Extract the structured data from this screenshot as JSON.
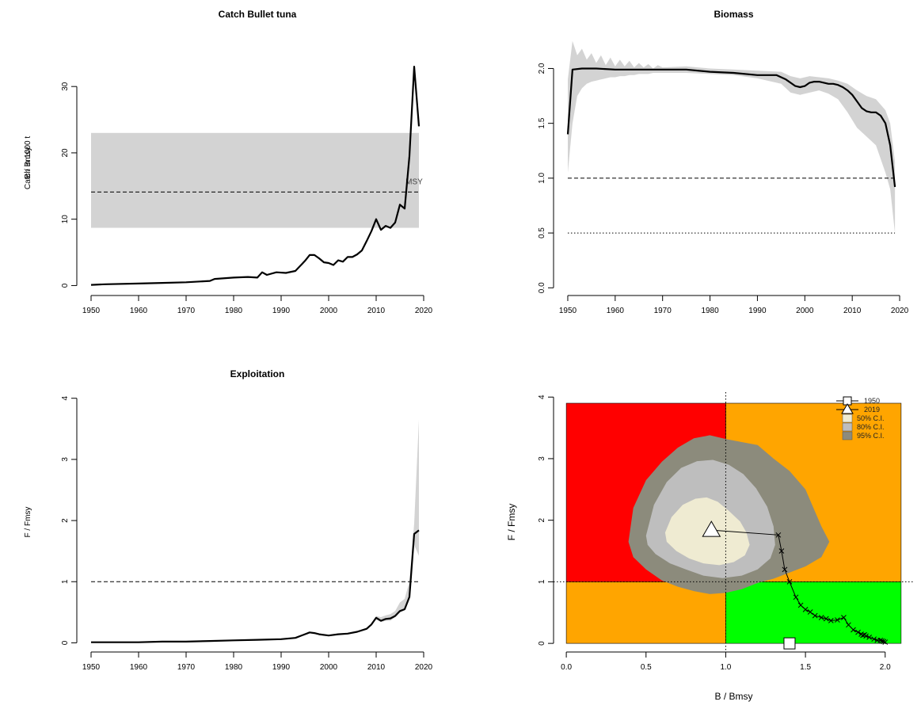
{
  "charts": [
    {
      "id": "catch",
      "type": "line",
      "title": "Catch Bullet tuna",
      "xlabel": "",
      "ylabel": "Catch in 1000 t",
      "xlim": [
        1947,
        2023
      ],
      "ylim": [
        -1.5,
        38.5
      ],
      "xticks": [
        1950,
        1960,
        1970,
        1980,
        1990,
        2000,
        2010,
        2020
      ],
      "yticks": [
        0,
        10,
        20,
        30
      ],
      "band": {
        "x": [
          1950,
          2019
        ],
        "ylow": 8.7,
        "yhigh": 23
      },
      "hline": {
        "y": 14.1,
        "style": "dashed"
      },
      "annotation": {
        "text": "MSY",
        "x": 2018,
        "y": 15.3
      },
      "line": {
        "x": [
          1950,
          1953,
          1960,
          1965,
          1970,
          1975,
          1976,
          1980,
          1983,
          1985,
          1986,
          1987,
          1989,
          1991,
          1993,
          1995,
          1996,
          1997,
          1998,
          1999,
          2000,
          2001,
          2002,
          2003,
          2004,
          2005,
          2006,
          2007,
          2008,
          2009,
          2010,
          2011,
          2012,
          2013,
          2014,
          2015,
          2016,
          2017,
          2018,
          2019
        ],
        "y": [
          0.1,
          0.2,
          0.3,
          0.4,
          0.5,
          0.7,
          1.0,
          1.2,
          1.3,
          1.2,
          2.0,
          1.6,
          2.0,
          1.9,
          2.2,
          3.7,
          4.6,
          4.6,
          4.1,
          3.5,
          3.4,
          3.1,
          3.8,
          3.6,
          4.3,
          4.3,
          4.7,
          5.3,
          6.7,
          8.2,
          10.0,
          8.4,
          9.0,
          8.7,
          9.5,
          12.2,
          11.6,
          19.5,
          33.0,
          24.0
        ]
      }
    },
    {
      "id": "biomass",
      "type": "line",
      "title": "Biomass",
      "xlabel": "",
      "ylabel": "B / Bmsy",
      "xlim": [
        1947,
        2023
      ],
      "ylim": [
        -0.07,
        2.35
      ],
      "xticks": [
        1950,
        1960,
        1970,
        1980,
        1990,
        2000,
        2010,
        2020
      ],
      "yticks": [
        "0.0",
        "0.5",
        "1.0",
        "1.5",
        "2.0"
      ],
      "hlines": [
        {
          "y": 1.0,
          "style": "dashed"
        },
        {
          "y": 0.5,
          "style": "dotted"
        }
      ],
      "band": {
        "x": [
          1950,
          1951,
          1952,
          1953,
          1954,
          1955,
          1956,
          1957,
          1958,
          1959,
          1960,
          1961,
          1962,
          1963,
          1964,
          1965,
          1966,
          1967,
          1968,
          1969,
          1970,
          1975,
          1980,
          1985,
          1990,
          1995,
          1997,
          1999,
          2001,
          2003,
          2005,
          2007,
          2009,
          2011,
          2013,
          2015,
          2017,
          2018,
          2019
        ],
        "upper": [
          1.9,
          2.25,
          2.12,
          2.18,
          2.08,
          2.14,
          2.05,
          2.12,
          2.03,
          2.1,
          2.02,
          2.08,
          2.02,
          2.07,
          2.01,
          2.05,
          2.01,
          2.04,
          2.0,
          2.03,
          2.01,
          2.02,
          2.0,
          1.99,
          1.98,
          1.97,
          1.93,
          1.91,
          1.93,
          1.92,
          1.91,
          1.89,
          1.86,
          1.8,
          1.75,
          1.72,
          1.62,
          1.5,
          1.15
        ],
        "lower": [
          1.05,
          1.5,
          1.75,
          1.82,
          1.86,
          1.88,
          1.89,
          1.9,
          1.91,
          1.92,
          1.92,
          1.93,
          1.93,
          1.94,
          1.94,
          1.95,
          1.95,
          1.95,
          1.96,
          1.96,
          1.96,
          1.96,
          1.95,
          1.94,
          1.91,
          1.86,
          1.78,
          1.76,
          1.78,
          1.8,
          1.77,
          1.72,
          1.6,
          1.46,
          1.38,
          1.3,
          1.05,
          0.9,
          0.5
        ]
      },
      "line": {
        "x": [
          1950,
          1951,
          1953,
          1956,
          1960,
          1965,
          1970,
          1975,
          1980,
          1985,
          1990,
          1994,
          1996,
          1998,
          1999,
          2000,
          2001,
          2002,
          2003,
          2004,
          2005,
          2006,
          2007,
          2008,
          2009,
          2010,
          2011,
          2012,
          2013,
          2014,
          2015,
          2016,
          2017,
          2018,
          2019
        ],
        "y": [
          1.4,
          1.99,
          2.0,
          2.0,
          1.99,
          1.99,
          1.99,
          1.99,
          1.97,
          1.96,
          1.94,
          1.94,
          1.9,
          1.84,
          1.83,
          1.84,
          1.87,
          1.88,
          1.88,
          1.87,
          1.86,
          1.86,
          1.85,
          1.83,
          1.8,
          1.76,
          1.7,
          1.64,
          1.61,
          1.6,
          1.6,
          1.57,
          1.5,
          1.3,
          0.92
        ]
      }
    },
    {
      "id": "exploitation",
      "type": "line",
      "title": "Exploitation",
      "xlabel": "",
      "ylabel": "F / Fmsy",
      "xlim": [
        1947,
        2023
      ],
      "ylim": [
        -0.15,
        4.1
      ],
      "xticks": [
        1950,
        1960,
        1970,
        1980,
        1990,
        2000,
        2010,
        2020
      ],
      "yticks": [
        0,
        1,
        2,
        3,
        4
      ],
      "hline": {
        "y": 1.0,
        "style": "dashed"
      },
      "band": {
        "x": [
          2010,
          2011,
          2012,
          2013,
          2014,
          2015,
          2016,
          2017,
          2018,
          2019
        ],
        "upper": [
          0.44,
          0.42,
          0.45,
          0.47,
          0.52,
          0.66,
          0.72,
          1.0,
          1.95,
          3.65
        ],
        "lower": [
          0.38,
          0.34,
          0.36,
          0.36,
          0.42,
          0.5,
          0.53,
          0.72,
          1.6,
          1.42
        ]
      },
      "line": {
        "x": [
          1950,
          1960,
          1965,
          1970,
          1975,
          1980,
          1985,
          1990,
          1993,
          1995,
          1996,
          1997,
          1998,
          2000,
          2002,
          2004,
          2006,
          2008,
          2009,
          2010,
          2011,
          2012,
          2013,
          2014,
          2015,
          2016,
          2017,
          2018,
          2019
        ],
        "y": [
          0.01,
          0.01,
          0.02,
          0.02,
          0.03,
          0.04,
          0.05,
          0.06,
          0.08,
          0.14,
          0.17,
          0.16,
          0.14,
          0.12,
          0.14,
          0.15,
          0.18,
          0.23,
          0.3,
          0.41,
          0.36,
          0.39,
          0.4,
          0.44,
          0.52,
          0.55,
          0.75,
          1.78,
          1.84
        ]
      }
    },
    {
      "id": "kobe",
      "type": "scatter",
      "title": "",
      "xlabel": "B / Bmsy",
      "ylabel": "F / Fmsy",
      "xlim": [
        -0.08,
        2.18
      ],
      "ylim": [
        -0.14,
        4.08
      ],
      "xticks": [
        "0.0",
        "0.5",
        "1.0",
        "1.5",
        "2.0"
      ],
      "yticks": [
        0,
        1,
        2,
        3,
        4
      ],
      "quadrants": {
        "xmax": 2.1,
        "ymax": 3.9,
        "colors": {
          "red": "#ff0000",
          "orange": "#ffa500",
          "green": "#00ff00"
        }
      },
      "ref_lines": {
        "x": 1.0,
        "y": 1.0,
        "style": "dotted"
      },
      "ci_regions": [
        {
          "name": "95% C.I.",
          "color": "#8c8b7c",
          "cx": 1.17,
          "cy": 2.1,
          "x": [
            0.39,
            0.42,
            0.5,
            0.6,
            0.7,
            0.8,
            0.9,
            1.0,
            1.1,
            1.2,
            1.3,
            1.4,
            1.5,
            1.6,
            1.65,
            1.6,
            1.5,
            1.4,
            1.3,
            1.2,
            1.1,
            1.0,
            0.9,
            0.8,
            0.7,
            0.6,
            0.5,
            0.42
          ],
          "y": [
            1.65,
            2.2,
            2.65,
            2.95,
            3.18,
            3.33,
            3.38,
            3.32,
            3.27,
            3.22,
            3.0,
            2.8,
            2.5,
            1.9,
            1.65,
            1.4,
            1.25,
            1.15,
            1.05,
            0.98,
            0.88,
            0.82,
            0.8,
            0.85,
            0.92,
            1.02,
            1.2,
            1.4
          ]
        },
        {
          "name": "80% C.I.",
          "color": "#bebebe",
          "x": [
            0.5,
            0.55,
            0.63,
            0.72,
            0.82,
            0.92,
            1.02,
            1.11,
            1.19,
            1.26,
            1.3,
            1.31,
            1.28,
            1.2,
            1.1,
            0.98,
            0.86,
            0.75,
            0.65,
            0.56,
            0.51
          ],
          "y": [
            1.75,
            2.25,
            2.62,
            2.85,
            2.96,
            2.98,
            2.9,
            2.75,
            2.52,
            2.22,
            1.9,
            1.6,
            1.38,
            1.2,
            1.1,
            1.06,
            1.1,
            1.2,
            1.3,
            1.45,
            1.6
          ]
        },
        {
          "name": "50% C.I.",
          "color": "#efebd2",
          "x": [
            0.62,
            0.66,
            0.73,
            0.81,
            0.88,
            0.95,
            1.02,
            1.09,
            1.13,
            1.15,
            1.12,
            1.05,
            0.96,
            0.86,
            0.77,
            0.69,
            0.63
          ],
          "y": [
            1.8,
            2.05,
            2.25,
            2.35,
            2.37,
            2.3,
            2.15,
            1.98,
            1.8,
            1.6,
            1.43,
            1.32,
            1.27,
            1.3,
            1.38,
            1.5,
            1.65
          ]
        }
      ],
      "trajectory": {
        "x": [
          0.91,
          1.33,
          1.35,
          1.37,
          1.4,
          1.44,
          1.47,
          1.5,
          1.53,
          1.56,
          1.6,
          1.63,
          1.66,
          1.7,
          1.74,
          1.77,
          1.8,
          1.83,
          1.85,
          1.86,
          1.87,
          1.88,
          1.9,
          1.93,
          1.95,
          1.97,
          1.98,
          1.99,
          2.0
        ],
        "y": [
          1.84,
          1.76,
          1.5,
          1.2,
          1.0,
          0.75,
          0.62,
          0.55,
          0.51,
          0.45,
          0.42,
          0.4,
          0.37,
          0.38,
          0.42,
          0.3,
          0.22,
          0.18,
          0.15,
          0.13,
          0.14,
          0.12,
          0.1,
          0.07,
          0.05,
          0.05,
          0.04,
          0.03,
          0.02
        ]
      },
      "start_marker": {
        "label": "1950",
        "x": 1.4,
        "y": 0.0
      },
      "end_marker": {
        "label": "2019",
        "x": 0.91,
        "y": 1.84
      },
      "legend": {
        "position": "top-right",
        "items": [
          "1950",
          "2019",
          "50% C.I.",
          "80% C.I.",
          "95% C.I."
        ]
      }
    }
  ]
}
